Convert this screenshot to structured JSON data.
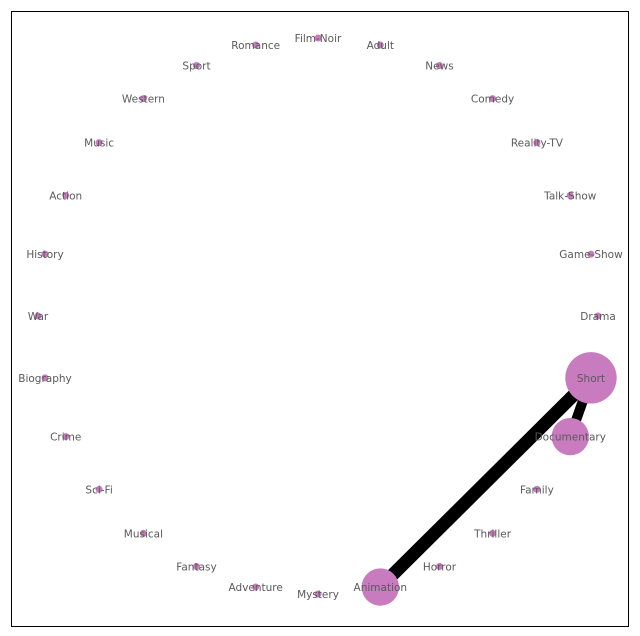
{
  "graph": {
    "node_color": "#c97bbf",
    "edge_color": "#000000",
    "label_color": "#5a5a5a",
    "nodes": [
      {
        "id": "Film-Noir",
        "label": "Film-Noir",
        "weight": 1
      },
      {
        "id": "Adult",
        "label": "Adult",
        "weight": 1
      },
      {
        "id": "News",
        "label": "News",
        "weight": 1
      },
      {
        "id": "Comedy",
        "label": "Comedy",
        "weight": 1
      },
      {
        "id": "Reality-TV",
        "label": "Reality-TV",
        "weight": 1
      },
      {
        "id": "Talk-Show",
        "label": "Talk-Show",
        "weight": 1
      },
      {
        "id": "Game-Show",
        "label": "Game-Show",
        "weight": 1
      },
      {
        "id": "Drama",
        "label": "Drama",
        "weight": 1
      },
      {
        "id": "Short",
        "label": "Short",
        "weight": 40
      },
      {
        "id": "Documentary",
        "label": "Documentary",
        "weight": 22
      },
      {
        "id": "Family",
        "label": "Family",
        "weight": 1
      },
      {
        "id": "Thriller",
        "label": "Thriller",
        "weight": 1
      },
      {
        "id": "Horror",
        "label": "Horror",
        "weight": 1
      },
      {
        "id": "Animation",
        "label": "Animation",
        "weight": 22
      },
      {
        "id": "Mystery",
        "label": "Mystery",
        "weight": 1
      },
      {
        "id": "Adventure",
        "label": "Adventure",
        "weight": 1
      },
      {
        "id": "Fantasy",
        "label": "Fantasy",
        "weight": 1
      },
      {
        "id": "Musical",
        "label": "Musical",
        "weight": 1
      },
      {
        "id": "Sci-Fi",
        "label": "Sci-Fi",
        "weight": 1
      },
      {
        "id": "Crime",
        "label": "Crime",
        "weight": 1
      },
      {
        "id": "Biography",
        "label": "Biography",
        "weight": 1
      },
      {
        "id": "War",
        "label": "War",
        "weight": 1
      },
      {
        "id": "History",
        "label": "History",
        "weight": 1
      },
      {
        "id": "Action",
        "label": "Action",
        "weight": 1
      },
      {
        "id": "Music",
        "label": "Music",
        "weight": 1
      },
      {
        "id": "Western",
        "label": "Western",
        "weight": 1
      },
      {
        "id": "Sport",
        "label": "Sport",
        "weight": 1
      },
      {
        "id": "Romance",
        "label": "Romance",
        "weight": 1
      }
    ],
    "edges": [
      {
        "source": "Short",
        "target": "Animation",
        "weight": 13
      },
      {
        "source": "Short",
        "target": "Documentary",
        "weight": 10
      }
    ]
  }
}
